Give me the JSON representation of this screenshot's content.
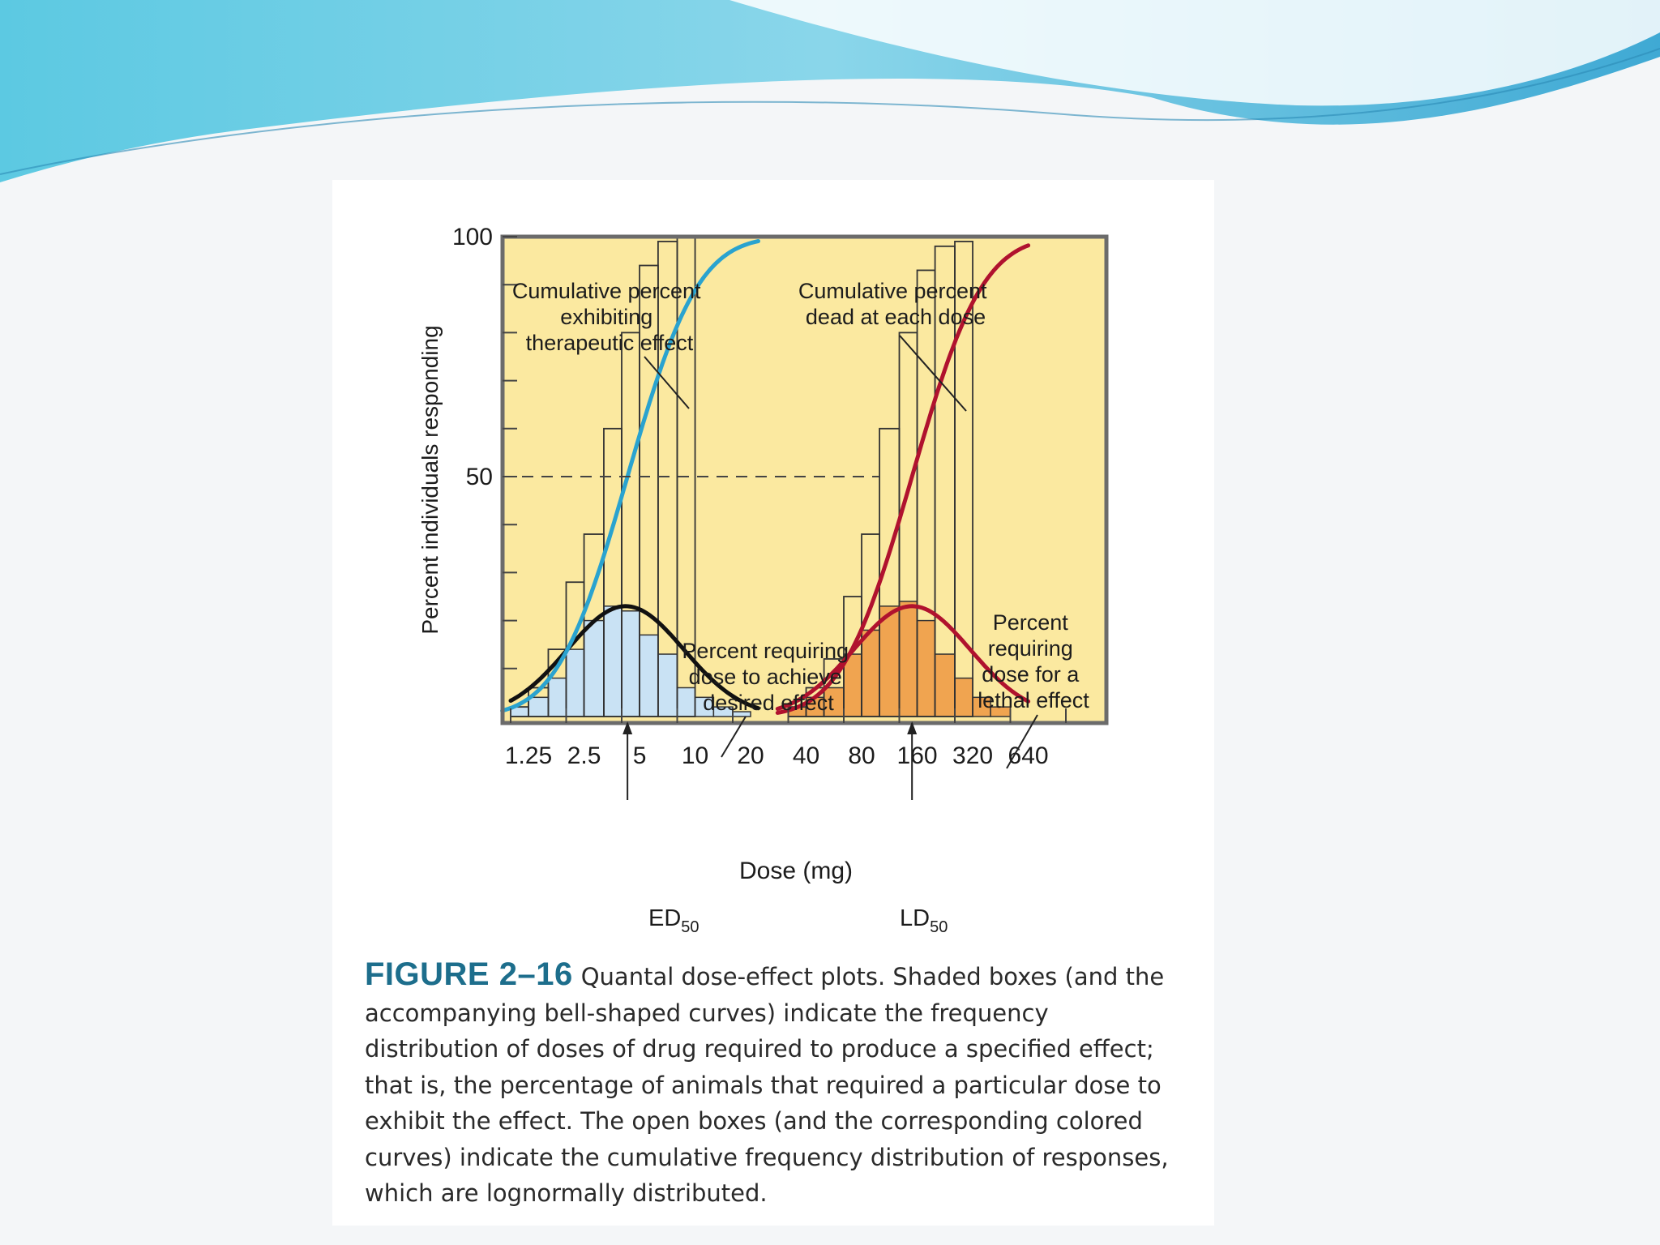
{
  "chart_data": {
    "type": "bar",
    "xlabel": "Dose (mg)",
    "ylabel": "Percent individuals responding",
    "x_ticks": [
      "1.25",
      "2.5",
      "5",
      "10",
      "20",
      "40",
      "80",
      "160",
      "320",
      "640"
    ],
    "x_scale": "log2",
    "y_ticks": [
      "50",
      "100"
    ],
    "ylim": [
      0,
      100
    ],
    "reference_line": {
      "y": 50,
      "style": "dashed"
    },
    "markers": [
      {
        "label": "ED",
        "subscript": "50",
        "x": 4.3
      },
      {
        "label": "LD",
        "subscript": "50",
        "x": 150
      }
    ],
    "series": [
      {
        "kind": "frequency-bars",
        "color": "#c9e2f4",
        "bins_mg": [
          1.0,
          1.25,
          1.6,
          2.0,
          2.5,
          3.2,
          4.0,
          5.0,
          6.3,
          8.0,
          10.0,
          12.6,
          16.0,
          20.0
        ],
        "values": [
          2,
          4,
          8,
          14,
          20,
          23,
          22,
          17,
          13,
          6,
          4,
          2,
          1
        ]
      },
      {
        "kind": "frequency-bars",
        "color": "#f0a450",
        "bins_mg": [
          32,
          40,
          50,
          64,
          80,
          100,
          128,
          160,
          200,
          256,
          320,
          400,
          512
        ],
        "values": [
          2,
          4,
          6,
          13,
          18,
          23,
          24,
          20,
          13,
          8,
          4,
          2
        ]
      },
      {
        "kind": "cumulative-steps",
        "color": "#333333",
        "bins_mg": [
          1.0,
          1.25,
          1.6,
          2.0,
          2.5,
          3.2,
          4.0,
          5.0,
          6.3,
          8.0,
          10.0,
          12.6,
          16.0,
          20.0
        ],
        "values": [
          2,
          6,
          14,
          28,
          38,
          60,
          80,
          94,
          99,
          100
        ]
      },
      {
        "kind": "cumulative-steps",
        "color": "#333333",
        "bins_mg": [
          32,
          40,
          50,
          64,
          80,
          100,
          128,
          160,
          200,
          256,
          320,
          400,
          512
        ],
        "values": [
          2,
          6,
          12,
          25,
          38,
          60,
          80,
          93,
          98,
          99
        ]
      },
      {
        "kind": "bell-curve",
        "color": "#111111",
        "mu_mg": 4.2,
        "sigma_log2": 1.05,
        "peak": 23,
        "x_range_mg": [
          1.0,
          22
        ]
      },
      {
        "kind": "bell-curve",
        "color": "#b0122e",
        "mu_mg": 150,
        "sigma_log2": 1.05,
        "peak": 23,
        "x_range_mg": [
          28,
          640
        ]
      },
      {
        "kind": "cumulative-curve",
        "color": "#2aa3cf",
        "mu_mg": 4.3,
        "sigma_log2": 1.0,
        "x_range_mg": [
          0.9,
          22
        ]
      },
      {
        "kind": "cumulative-curve",
        "color": "#b0122e",
        "mu_mg": 150,
        "sigma_log2": 1.0,
        "x_range_mg": [
          28,
          640
        ]
      }
    ],
    "annotations": [
      {
        "lines": [
          "Cumulative percent",
          "exhibiting",
          "therapeutic effect"
        ]
      },
      {
        "lines": [
          "Cumulative percent",
          "dead at each dose"
        ]
      },
      {
        "lines": [
          "Percent requiring",
          "dose to achieve",
          "desired effect"
        ]
      },
      {
        "lines": [
          "Percent",
          "requiring",
          "dose for a",
          "lethal effect"
        ]
      }
    ]
  },
  "caption": {
    "figure_label": "FIGURE 2–16",
    "text": "Quantal dose-effect plots. Shaded boxes (and the accompanying bell-shaped curves) indicate the frequency distribution of doses of drug required to produce a specified effect; that is, the percentage of animals that required a particular dose to exhibit the effect. The open boxes (and the corresponding colored curves) indicate the cumulative frequency distribution of responses, which are lognormally distributed."
  },
  "colors": {
    "plot_background": "#fbe9a0",
    "header_wave": "#3fb8d8"
  }
}
